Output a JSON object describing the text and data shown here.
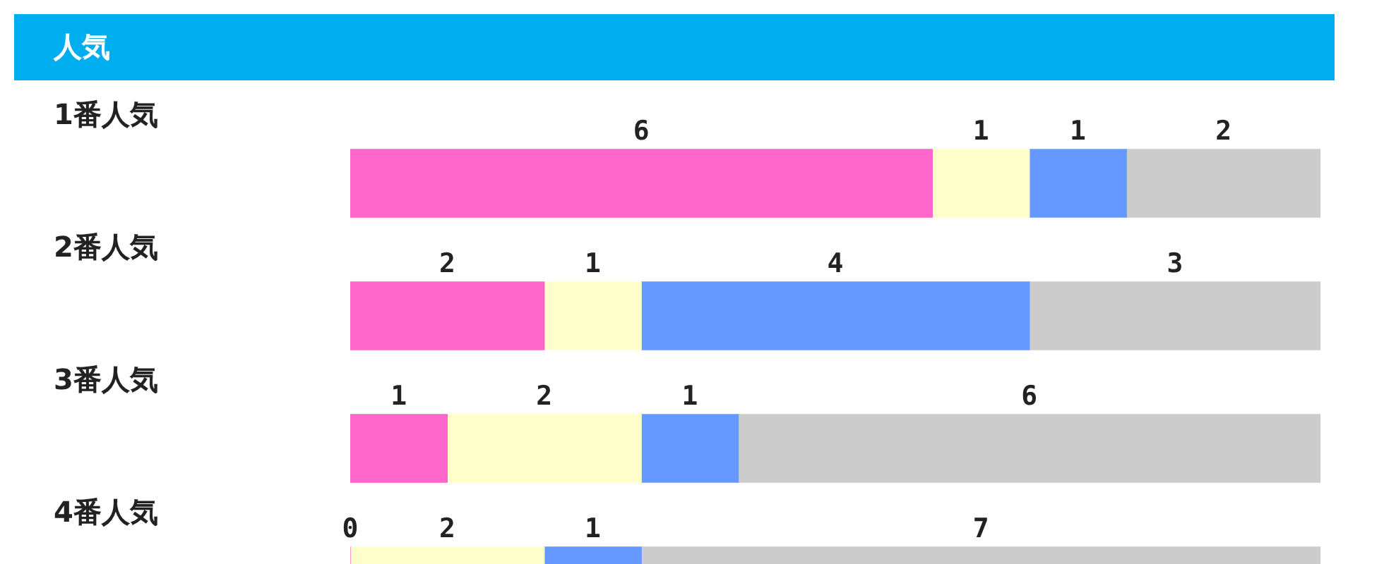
{
  "chart_data": {
    "type": "bar",
    "title": "人気",
    "orientation": "horizontal",
    "stacked": true,
    "categories": [
      "1番人気",
      "2番人気",
      "3番人気",
      "4番人気"
    ],
    "series": [
      {
        "color": "#ff66cc",
        "values": [
          6,
          2,
          1,
          0
        ]
      },
      {
        "color": "#ffffcc",
        "values": [
          1,
          1,
          2,
          2
        ]
      },
      {
        "color": "#6699ff",
        "values": [
          1,
          4,
          1,
          1
        ]
      },
      {
        "color": "#cccccc",
        "values": [
          2,
          3,
          6,
          7
        ]
      }
    ],
    "data_labels": true,
    "tick_labels": false,
    "grid": false,
    "legend": false
  }
}
